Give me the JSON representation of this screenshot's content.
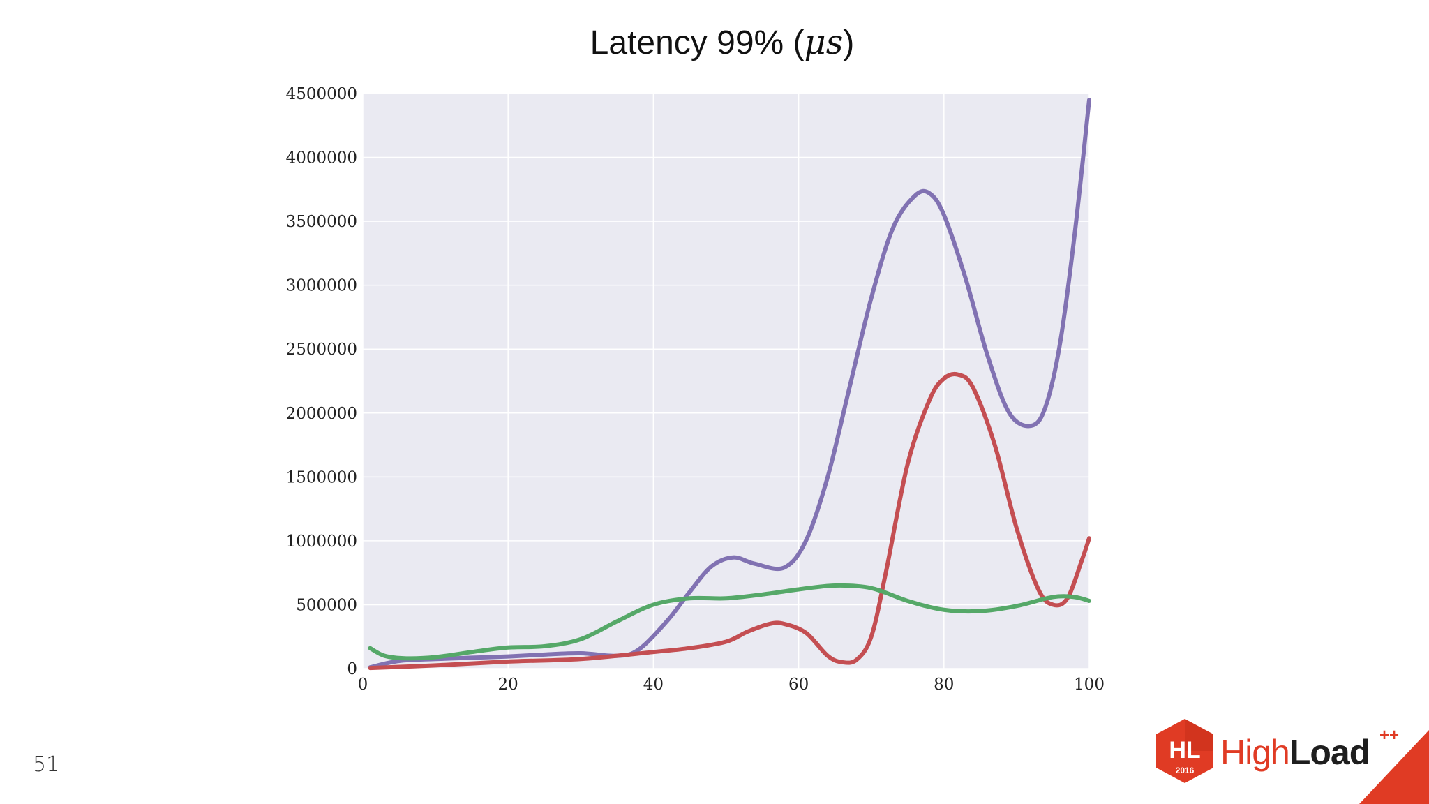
{
  "slide": {
    "page_number": "51"
  },
  "logo": {
    "mark_text": "HL",
    "year": "2016",
    "word_high": "High",
    "word_load": "Load",
    "plus": "++",
    "color_primary": "#e03b24",
    "color_dark": "#1e1e1e"
  },
  "chart_data": {
    "type": "line",
    "title": "Latency 99% (μs)",
    "title_parts": {
      "main": "Latency 99% (",
      "math": "μs",
      "close": ")"
    },
    "xlabel": "",
    "ylabel": "",
    "xlim": [
      0,
      100
    ],
    "ylim": [
      0,
      4500000
    ],
    "x_ticks": [
      0,
      20,
      40,
      60,
      80,
      100
    ],
    "y_ticks": [
      0,
      500000,
      1000000,
      1500000,
      2000000,
      2500000,
      3000000,
      3500000,
      4000000,
      4500000
    ],
    "grid": true,
    "legend": "none",
    "background": "#eaeaf2",
    "series": [
      {
        "color": "#8172b2",
        "x": [
          1,
          5,
          10,
          15,
          20,
          25,
          30,
          35,
          38,
          42,
          45,
          48,
          51,
          54,
          58,
          61,
          64,
          67,
          70,
          73,
          76,
          78,
          80,
          83,
          86,
          89,
          92,
          94,
          96,
          98,
          100
        ],
        "y": [
          10000,
          60000,
          75000,
          85000,
          95000,
          110000,
          120000,
          100000,
          150000,
          380000,
          600000,
          800000,
          870000,
          820000,
          790000,
          1000000,
          1500000,
          2200000,
          2900000,
          3450000,
          3700000,
          3720000,
          3550000,
          3050000,
          2450000,
          2000000,
          1900000,
          2050000,
          2550000,
          3400000,
          4450000
        ]
      },
      {
        "color": "#c44e52",
        "x": [
          1,
          10,
          20,
          30,
          40,
          45,
          50,
          53,
          56,
          58,
          61,
          64,
          66,
          68,
          70,
          72,
          75,
          78,
          80,
          82,
          84,
          87,
          90,
          93,
          95,
          97,
          99,
          100
        ],
        "y": [
          5000,
          25000,
          55000,
          75000,
          130000,
          160000,
          210000,
          290000,
          350000,
          350000,
          280000,
          100000,
          50000,
          70000,
          250000,
          750000,
          1600000,
          2100000,
          2270000,
          2300000,
          2200000,
          1750000,
          1100000,
          620000,
          500000,
          550000,
          850000,
          1020000
        ]
      },
      {
        "color": "#55a868",
        "x": [
          1,
          3,
          6,
          10,
          15,
          20,
          25,
          30,
          35,
          40,
          45,
          50,
          55,
          60,
          65,
          70,
          75,
          80,
          85,
          90,
          95,
          98,
          100
        ],
        "y": [
          160000,
          100000,
          80000,
          90000,
          130000,
          165000,
          175000,
          230000,
          370000,
          500000,
          550000,
          550000,
          580000,
          620000,
          650000,
          630000,
          530000,
          460000,
          450000,
          490000,
          560000,
          560000,
          530000
        ]
      }
    ]
  }
}
